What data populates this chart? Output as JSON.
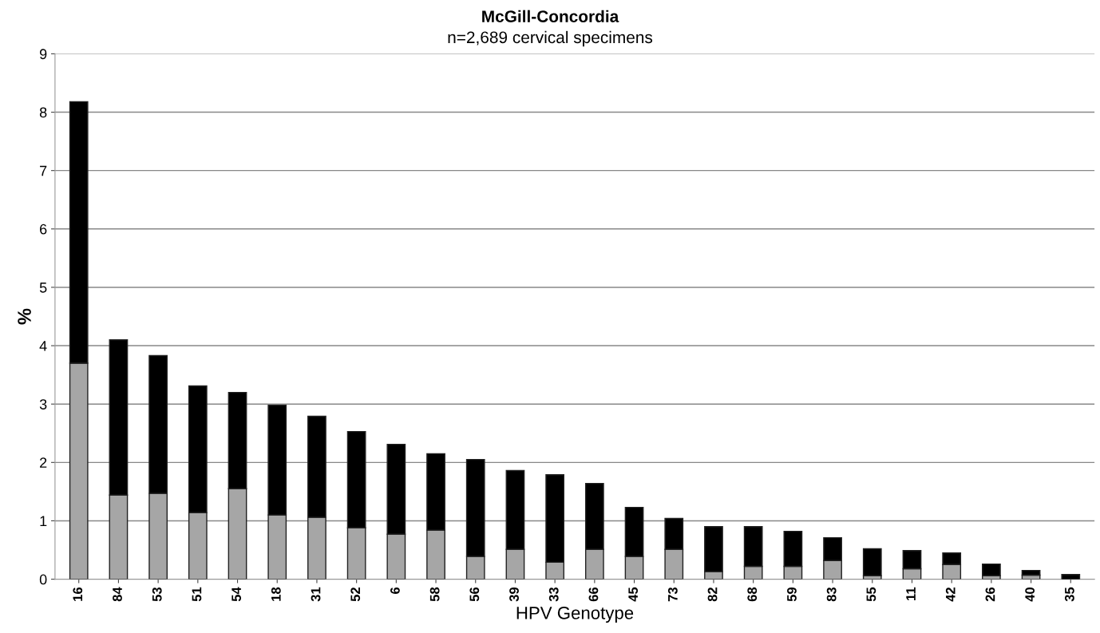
{
  "chart_data": {
    "type": "bar",
    "title": "McGill-Concordia",
    "subtitle": "n=2,689 cervical specimens",
    "xlabel": "HPV Genotype",
    "ylabel": "%",
    "categories": [
      "16",
      "84",
      "53",
      "51",
      "54",
      "18",
      "31",
      "52",
      "6",
      "58",
      "56",
      "39",
      "33",
      "66",
      "45",
      "73",
      "82",
      "68",
      "59",
      "83",
      "55",
      "11",
      "42",
      "26",
      "40",
      "35"
    ],
    "stacked": true,
    "series": [
      {
        "color": "#a6a6a6",
        "values": [
          3.7,
          1.44,
          1.47,
          1.14,
          1.55,
          1.1,
          1.06,
          0.88,
          0.77,
          0.84,
          0.39,
          0.51,
          0.29,
          0.51,
          0.39,
          0.51,
          0.13,
          0.22,
          0.22,
          0.32,
          0.06,
          0.18,
          0.25,
          0.06,
          0.07,
          null
        ]
      },
      {
        "color": "#000000",
        "values": [
          4.48,
          2.66,
          2.36,
          2.17,
          1.65,
          1.88,
          1.73,
          1.65,
          1.54,
          1.31,
          1.66,
          1.35,
          1.5,
          1.13,
          0.84,
          0.53,
          0.77,
          0.68,
          0.6,
          0.39,
          0.46,
          0.31,
          0.2,
          0.2,
          0.08,
          0.08
        ]
      }
    ],
    "ylim": [
      0,
      9
    ],
    "yticks": [
      0,
      1,
      2,
      3,
      4,
      5,
      6,
      7,
      8,
      9
    ],
    "grid": "y"
  }
}
